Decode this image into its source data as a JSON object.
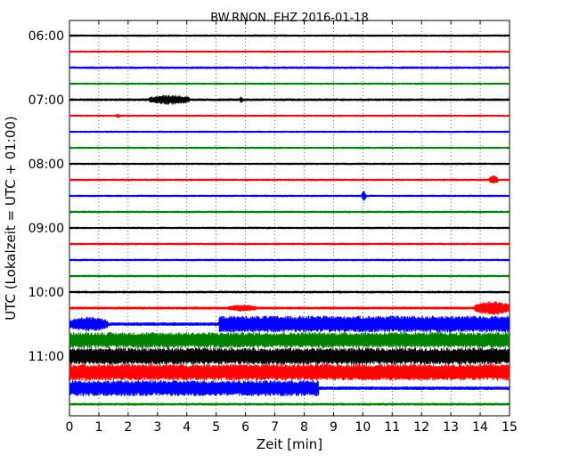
{
  "chart_data": {
    "type": "line",
    "title": "BW.RNON..EHZ 2016-01-18",
    "xlabel": "Zeit  [min]",
    "ylabel": "UTC (Lokalzeit = UTC + 01:00)",
    "xlim": [
      0,
      15
    ],
    "x_ticks": [
      "0",
      "1",
      "2",
      "3",
      "4",
      "5",
      "6",
      "7",
      "8",
      "9",
      "10",
      "11",
      "12",
      "13",
      "14",
      "15"
    ],
    "y_tick_labels": [
      "06:00",
      "07:00",
      "08:00",
      "09:00",
      "10:00",
      "11:00"
    ],
    "grid": "vertical-dotted",
    "trace_colors": [
      "#000000",
      "#ff0000",
      "#0000ff",
      "#008000"
    ],
    "traces": [
      {
        "start": "06:00",
        "base_amplitude": 1.3,
        "events": []
      },
      {
        "start": "06:15",
        "base_amplitude": 1.2,
        "events": []
      },
      {
        "start": "06:30",
        "base_amplitude": 1.4,
        "events": []
      },
      {
        "start": "06:45",
        "base_amplitude": 1.2,
        "events": []
      },
      {
        "start": "07:00",
        "base_amplitude": 1.5,
        "events": [
          {
            "from": 2.7,
            "to": 4.1,
            "amplitude": 5.5
          },
          {
            "from": 5.8,
            "to": 5.9,
            "amplitude": 4.0
          }
        ]
      },
      {
        "start": "07:15",
        "base_amplitude": 1.2,
        "events": [
          {
            "from": 1.6,
            "to": 1.7,
            "amplitude": 3.0
          }
        ]
      },
      {
        "start": "07:30",
        "base_amplitude": 1.2,
        "events": []
      },
      {
        "start": "07:45",
        "base_amplitude": 1.2,
        "events": []
      },
      {
        "start": "08:00",
        "base_amplitude": 1.3,
        "events": []
      },
      {
        "start": "08:15",
        "base_amplitude": 1.3,
        "events": [
          {
            "from": 14.3,
            "to": 14.6,
            "amplitude": 5.0
          }
        ]
      },
      {
        "start": "08:30",
        "base_amplitude": 1.3,
        "events": [
          {
            "from": 9.95,
            "to": 10.1,
            "amplitude": 6.0
          }
        ]
      },
      {
        "start": "08:45",
        "base_amplitude": 1.3,
        "events": []
      },
      {
        "start": "09:00",
        "base_amplitude": 1.3,
        "events": []
      },
      {
        "start": "09:15",
        "base_amplitude": 1.3,
        "events": []
      },
      {
        "start": "09:30",
        "base_amplitude": 1.3,
        "events": []
      },
      {
        "start": "09:45",
        "base_amplitude": 1.3,
        "events": []
      },
      {
        "start": "10:00",
        "base_amplitude": 1.4,
        "events": []
      },
      {
        "start": "10:15",
        "base_amplitude": 1.6,
        "events": [
          {
            "from": 5.4,
            "to": 6.4,
            "amplitude": 4.0
          },
          {
            "from": 13.8,
            "to": 15.0,
            "amplitude": 8.0
          }
        ]
      },
      {
        "start": "10:30",
        "base_amplitude": 2.0,
        "events": [
          {
            "from": 0.0,
            "to": 1.3,
            "amplitude": 8.5
          },
          {
            "from": 5.1,
            "to": 15.0,
            "amplitude": 9.5
          }
        ]
      },
      {
        "start": "10:45",
        "base_amplitude": 9.0,
        "events": []
      },
      {
        "start": "11:00",
        "base_amplitude": 9.5,
        "events": []
      },
      {
        "start": "11:15",
        "base_amplitude": 9.5,
        "events": []
      },
      {
        "start": "11:30",
        "base_amplitude": 2.0,
        "events": [
          {
            "from": 0.0,
            "to": 8.5,
            "amplitude": 9.0
          }
        ]
      },
      {
        "start": "11:45",
        "base_amplitude": 1.5,
        "events": []
      }
    ]
  }
}
